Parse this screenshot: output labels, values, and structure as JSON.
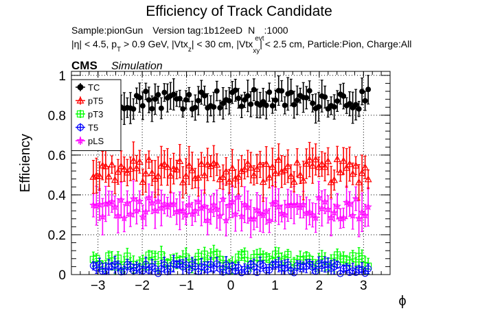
{
  "chart_data": {
    "type": "scatter",
    "title": "Efficiency of Track Candidate",
    "header": {
      "sample_prefix": "Sample:",
      "sample": "pionGun",
      "version_prefix": "Version tag:",
      "version": "1b12eeD",
      "nevt_label": "N",
      "nevt_sub": "evt",
      "nevt_value": ":1000",
      "cuts": {
        "eta": "|η| < 4.5, p",
        "pt_sub": "T",
        "pt": " > 0.9 GeV, |Vtx",
        "vtxz_sub": "z",
        "vtxz": "| < 30 cm, |Vtx",
        "vtxxy_sub": "xy",
        "rest": "| < 2.5 cm, Particle:Pion, Charge:All"
      }
    },
    "cms_label": "CMS",
    "simulation_label": "Simulation",
    "xlabel": "ϕ",
    "ylabel": "Efficiency",
    "xlim": [
      -3.6,
      3.6
    ],
    "ylim": [
      0,
      1.02
    ],
    "x_ticks": [
      -3,
      -2,
      -1,
      0,
      1,
      2,
      3
    ],
    "x_tick_labels": [
      "−3",
      "−2",
      "−1",
      "0",
      "1",
      "2",
      "3"
    ],
    "y_ticks": [
      0,
      0.2,
      0.4,
      0.6,
      0.8,
      1
    ],
    "y_tick_labels": [
      "0",
      "0.2",
      "0.4",
      "0.6",
      "0.8",
      "1"
    ],
    "grid": true,
    "legend_position": "top-left",
    "x_range": [
      -3.14,
      3.14
    ],
    "n_bins": 90,
    "series": [
      {
        "name": "TC",
        "color": "#000000",
        "marker": "filled-circle",
        "mean": 0.88,
        "spread": 0.05,
        "err": 0.06
      },
      {
        "name": "pT5",
        "color": "#ff0000",
        "marker": "open-triangle",
        "mean": 0.52,
        "spread": 0.06,
        "err": 0.07
      },
      {
        "name": "pT3",
        "color": "#00ff00",
        "marker": "open-square",
        "mean": 0.07,
        "spread": 0.035,
        "err": 0.035
      },
      {
        "name": "T5",
        "color": "#0000ff",
        "marker": "open-circle",
        "mean": 0.03,
        "spread": 0.025,
        "err": 0.03
      },
      {
        "name": "pLS",
        "color": "#ff00ff",
        "marker": "open-star",
        "mean": 0.33,
        "spread": 0.06,
        "err": 0.07
      }
    ]
  }
}
